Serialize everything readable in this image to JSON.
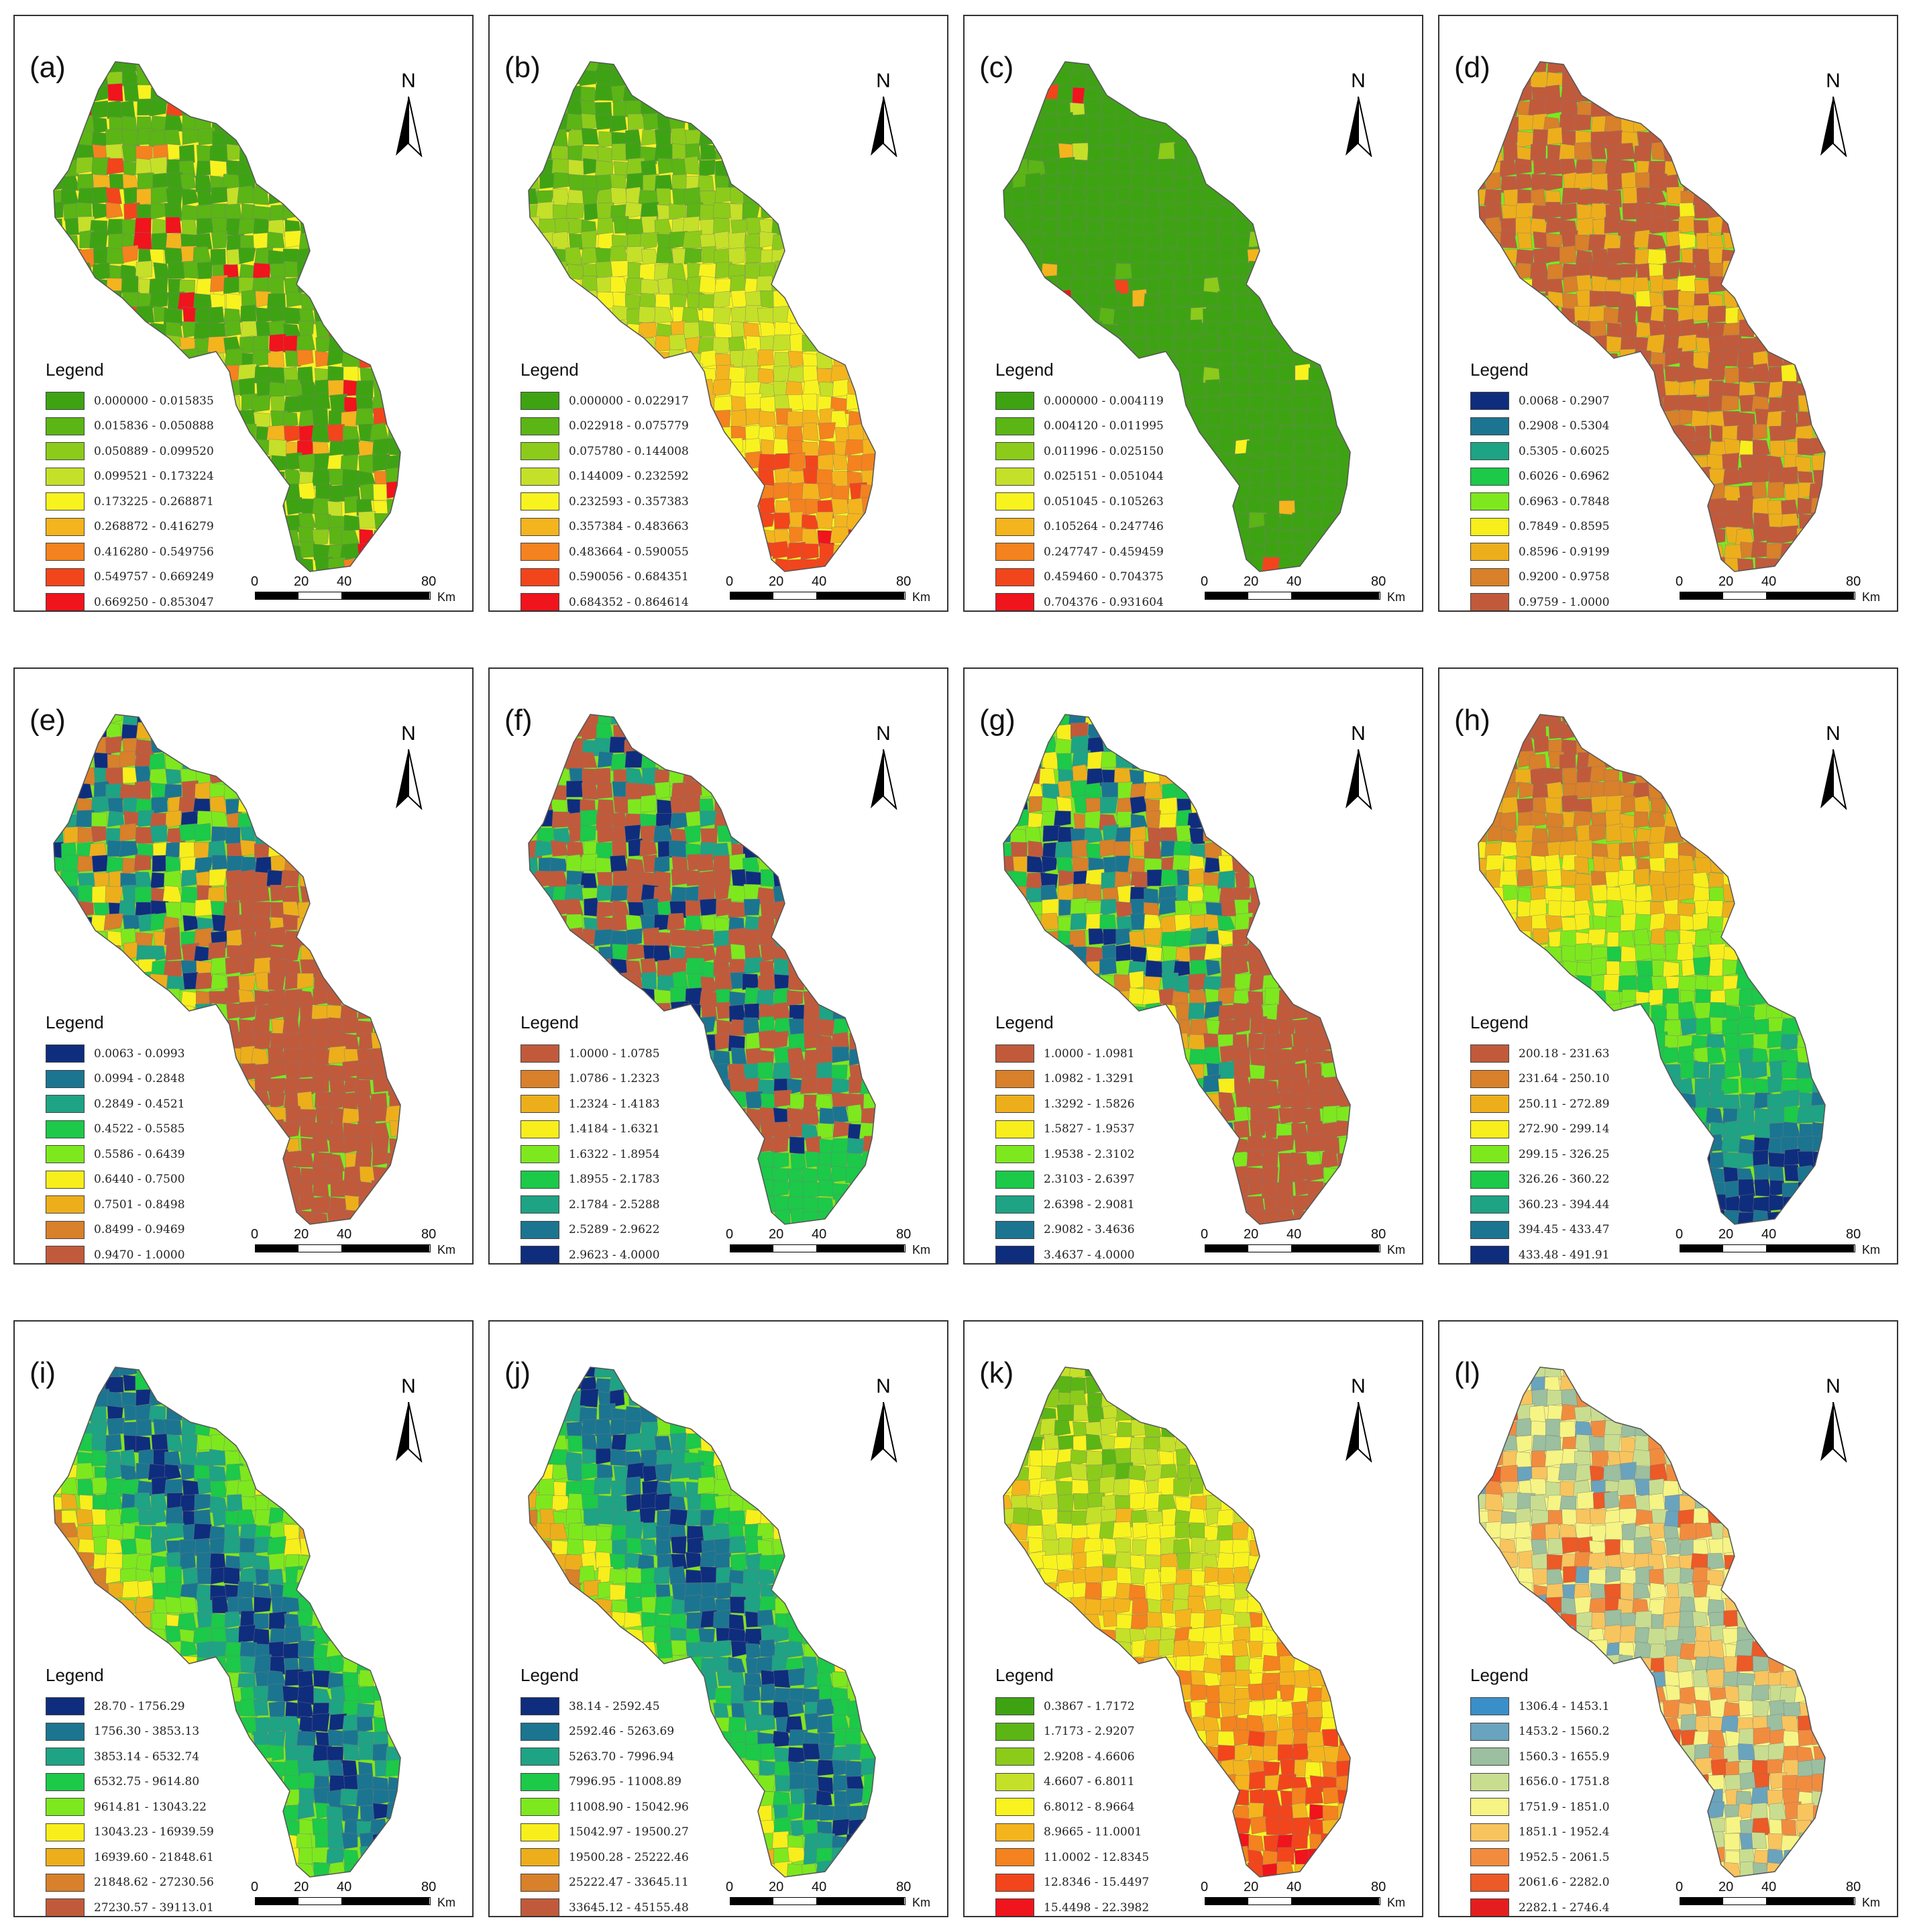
{
  "legend_title": "Legend",
  "north_label": "N",
  "scale": {
    "ticks": [
      "0",
      "20",
      "40",
      "80"
    ],
    "unit": "Km"
  },
  "panels": [
    {
      "label": "(a)",
      "scheme": "gr",
      "ranges": [
        "0.000000 - 0.015835",
        "0.015836 - 0.050888",
        "0.050889 - 0.099520",
        "0.099521 - 0.173224",
        "0.173225 - 0.268871",
        "0.268872 - 0.416279",
        "0.416280 - 0.549756",
        "0.549757 - 0.669249",
        "0.669250 - 0.853047"
      ]
    },
    {
      "label": "(b)",
      "scheme": "gr",
      "ranges": [
        "0.000000 - 0.022917",
        "0.022918 - 0.075779",
        "0.075780 - 0.144008",
        "0.144009 - 0.232592",
        "0.232593 - 0.357383",
        "0.357384 - 0.483663",
        "0.483664 - 0.590055",
        "0.590056 - 0.684351",
        "0.684352 - 0.864614"
      ]
    },
    {
      "label": "(c)",
      "scheme": "gr",
      "ranges": [
        "0.000000 - 0.004119",
        "0.004120 - 0.011995",
        "0.011996 - 0.025150",
        "0.025151 - 0.051044",
        "0.051045 - 0.105263",
        "0.105264 - 0.247746",
        "0.247747 - 0.459459",
        "0.459460 - 0.704375",
        "0.704376 - 0.931604"
      ]
    },
    {
      "label": "(d)",
      "scheme": "bb",
      "ranges": [
        "0.0068 - 0.2907",
        "0.2908 - 0.5304",
        "0.5305 - 0.6025",
        "0.6026 - 0.6962",
        "0.6963 - 0.7848",
        "0.7849 - 0.8595",
        "0.8596 - 0.9199",
        "0.9200 - 0.9758",
        "0.9759 - 1.0000"
      ]
    },
    {
      "label": "(e)",
      "scheme": "bb",
      "ranges": [
        "0.0063 - 0.0993",
        "0.0994 - 0.2848",
        "0.2849 - 0.4521",
        "0.4522 - 0.5585",
        "0.5586 - 0.6439",
        "0.6440 - 0.7500",
        "0.7501 - 0.8498",
        "0.8499 - 0.9469",
        "0.9470 - 1.0000"
      ]
    },
    {
      "label": "(f)",
      "scheme": "br",
      "ranges": [
        "1.0000 - 1.0785",
        "1.0786 - 1.2323",
        "1.2324 - 1.4183",
        "1.4184 - 1.6321",
        "1.6322 - 1.8954",
        "1.8955 - 2.1783",
        "2.1784 - 2.5288",
        "2.5289 - 2.9622",
        "2.9623 - 4.0000"
      ]
    },
    {
      "label": "(g)",
      "scheme": "br",
      "ranges": [
        "1.0000 - 1.0981",
        "1.0982 - 1.3291",
        "1.3292 - 1.5826",
        "1.5827 - 1.9537",
        "1.9538 - 2.3102",
        "2.3103 - 2.6397",
        "2.6398 - 2.9081",
        "2.9082 - 3.4636",
        "3.4637 - 4.0000"
      ]
    },
    {
      "label": "(h)",
      "scheme": "br",
      "ranges": [
        "200.18 - 231.63",
        "231.64 - 250.10",
        "250.11 - 272.89",
        "272.90 - 299.14",
        "299.15 - 326.25",
        "326.26 - 360.22",
        "360.23 - 394.44",
        "394.45 - 433.47",
        "433.48 - 491.91"
      ]
    },
    {
      "label": "(i)",
      "scheme": "bb",
      "ranges": [
        "28.70 - 1756.29",
        "1756.30 - 3853.13",
        "3853.14 - 6532.74",
        "6532.75 - 9614.80",
        "9614.81 - 13043.22",
        "13043.23 - 16939.59",
        "16939.60 - 21848.61",
        "21848.62 - 27230.56",
        "27230.57 - 39113.01"
      ]
    },
    {
      "label": "(j)",
      "scheme": "bb",
      "ranges": [
        "38.14 - 2592.45",
        "2592.46 - 5263.69",
        "5263.70 - 7996.94",
        "7996.95 - 11008.89",
        "11008.90 - 15042.96",
        "15042.97 - 19500.27",
        "19500.28 - 25222.46",
        "25222.47 - 33645.11",
        "33645.12 - 45155.48"
      ]
    },
    {
      "label": "(k)",
      "scheme": "gr",
      "ranges": [
        "0.3867 - 1.7172",
        "1.7173 - 2.9207",
        "2.9208 - 4.6606",
        "4.6607 - 6.8011",
        "6.8012 - 8.9664",
        "8.9665 - 11.0001",
        "11.0002 - 12.8345",
        "12.8346 - 15.4497",
        "15.4498 - 22.3982"
      ]
    },
    {
      "label": "(l)",
      "scheme": "bluered",
      "ranges": [
        "1306.4 - 1453.1",
        "1453.2 - 1560.2",
        "1560.3 - 1655.9",
        "1656.0 - 1751.8",
        "1751.9 - 1851.0",
        "1851.1 - 1952.4",
        "1952.5 - 2061.5",
        "2061.6 - 2282.0",
        "2282.1 - 2746.4"
      ]
    }
  ],
  "palettes": {
    "gr": [
      "#3ea313",
      "#5bb515",
      "#8ccb1a",
      "#c5e028",
      "#f8f31e",
      "#f4b41d",
      "#f4821e",
      "#f2451c",
      "#f0141c"
    ],
    "bb": [
      "#0f2d7d",
      "#1b7590",
      "#1ea384",
      "#1cc949",
      "#7ee81e",
      "#f7ee1c",
      "#edae1c",
      "#d8802a",
      "#c15a3b"
    ],
    "br": [
      "#c15a3b",
      "#d8802a",
      "#edae1c",
      "#f7ee1c",
      "#7ee81e",
      "#1cc949",
      "#1ea384",
      "#1b7590",
      "#0f2d7d"
    ],
    "bluered": [
      "#3a8fc9",
      "#6aa3bd",
      "#9bbf9f",
      "#c9dd90",
      "#f6f484",
      "#f8c45e",
      "#f18c3f",
      "#eb5a27",
      "#e41e1f"
    ]
  }
}
